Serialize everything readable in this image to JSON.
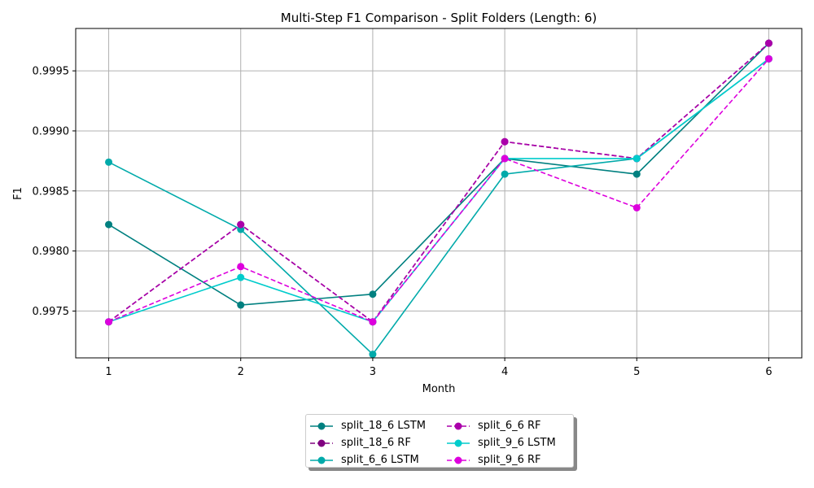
{
  "chart_data": {
    "type": "line",
    "title": "Multi-Step F1 Comparison - Split Folders (Length: 6)",
    "xlabel": "Month",
    "ylabel": "F1",
    "x": [
      1,
      2,
      3,
      4,
      5,
      6
    ],
    "xticks": [
      "1",
      "2",
      "3",
      "4",
      "5",
      "6"
    ],
    "yticks": [
      0.9975,
      0.998,
      0.9985,
      0.999,
      0.9995
    ],
    "ytick_labels": [
      "0.9975",
      "0.9980",
      "0.9985",
      "0.9990",
      "0.9995"
    ],
    "xlim": [
      0.75,
      6.25
    ],
    "ylim": [
      0.99711,
      0.999853
    ],
    "grid": true,
    "legend_position": "bottom-center, below axes",
    "series": [
      {
        "name": "split_18_6 LSTM",
        "color": "#008080",
        "dash": "solid",
        "values": [
          0.99822,
          0.99755,
          0.99764,
          0.99877,
          0.99864,
          0.99973
        ]
      },
      {
        "name": "split_18_6 RF",
        "color": "#800080",
        "dash": "dashed",
        "values": [
          0.99741,
          0.99822,
          0.99741,
          0.99891,
          0.99877,
          0.99973
        ]
      },
      {
        "name": "split_6_6 LSTM",
        "color": "#00aaaa",
        "dash": "solid",
        "values": [
          0.99874,
          0.99818,
          0.99714,
          0.99864,
          0.99877,
          0.9996
        ]
      },
      {
        "name": "split_6_6 RF",
        "color": "#aa00aa",
        "dash": "dashed",
        "values": [
          0.99741,
          0.99822,
          0.99741,
          0.99891,
          0.99877,
          0.99973
        ]
      },
      {
        "name": "split_9_6 LSTM",
        "color": "#00cccc",
        "dash": "solid",
        "values": [
          0.99741,
          0.99778,
          0.99741,
          0.99877,
          0.99877,
          0.9996
        ]
      },
      {
        "name": "split_9_6 RF",
        "color": "#dd00dd",
        "dash": "dashed",
        "values": [
          0.99741,
          0.99787,
          0.99741,
          0.99877,
          0.99836,
          0.9996
        ]
      }
    ]
  }
}
